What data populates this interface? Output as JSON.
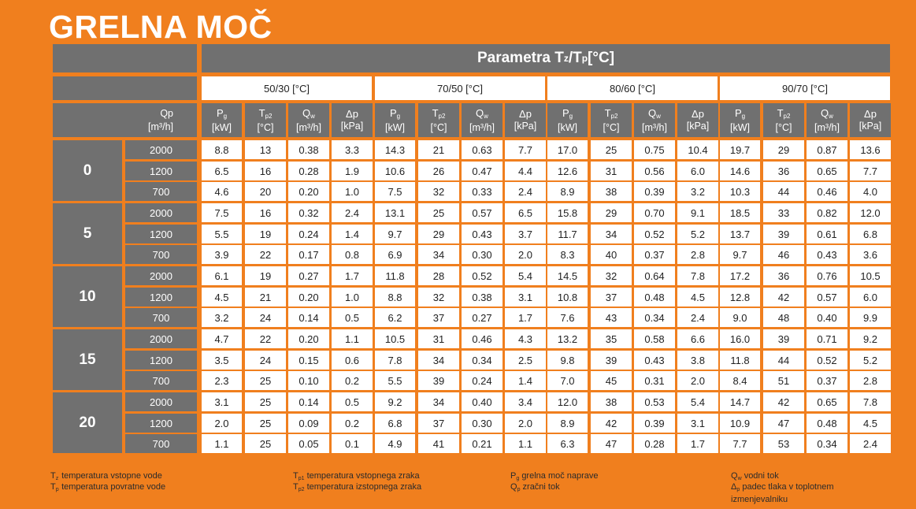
{
  "title": "GRELNA MOČ",
  "param_header": {
    "base": "Parametra T",
    "sub1": "z",
    "mid": "/T",
    "sub2": "p",
    "unit": " [°C]"
  },
  "qp_header": {
    "label": "Qp",
    "unit": "[m³/h]"
  },
  "ranges": [
    "50/30 [°C]",
    "70/50 [°C]",
    "80/60 [°C]",
    "90/70 [°C]"
  ],
  "columns": [
    {
      "sym": "P",
      "sub": "g",
      "unit": "[kW]"
    },
    {
      "sym": "T",
      "sub": "p2",
      "unit": "[°C]"
    },
    {
      "sym": "Q",
      "sub": "w",
      "unit": "[m³/h]"
    },
    {
      "sym": "Δp",
      "sub": "",
      "unit": "[kPa]"
    }
  ],
  "groups": [
    {
      "temp": "0",
      "rows": [
        {
          "flow": "2000",
          "values": [
            "8.8",
            "13",
            "0.38",
            "3.3",
            "14.3",
            "21",
            "0.63",
            "7.7",
            "17.0",
            "25",
            "0.75",
            "10.4",
            "19.7",
            "29",
            "0.87",
            "13.6"
          ]
        },
        {
          "flow": "1200",
          "values": [
            "6.5",
            "16",
            "0.28",
            "1.9",
            "10.6",
            "26",
            "0.47",
            "4.4",
            "12.6",
            "31",
            "0.56",
            "6.0",
            "14.6",
            "36",
            "0.65",
            "7.7"
          ]
        },
        {
          "flow": "700",
          "values": [
            "4.6",
            "20",
            "0.20",
            "1.0",
            "7.5",
            "32",
            "0.33",
            "2.4",
            "8.9",
            "38",
            "0.39",
            "3.2",
            "10.3",
            "44",
            "0.46",
            "4.0"
          ]
        }
      ]
    },
    {
      "temp": "5",
      "rows": [
        {
          "flow": "2000",
          "values": [
            "7.5",
            "16",
            "0.32",
            "2.4",
            "13.1",
            "25",
            "0.57",
            "6.5",
            "15.8",
            "29",
            "0.70",
            "9.1",
            "18.5",
            "33",
            "0.82",
            "12.0"
          ]
        },
        {
          "flow": "1200",
          "values": [
            "5.5",
            "19",
            "0.24",
            "1.4",
            "9.7",
            "29",
            "0.43",
            "3.7",
            "11.7",
            "34",
            "0.52",
            "5.2",
            "13.7",
            "39",
            "0.61",
            "6.8"
          ]
        },
        {
          "flow": "700",
          "values": [
            "3.9",
            "22",
            "0.17",
            "0.8",
            "6.9",
            "34",
            "0.30",
            "2.0",
            "8.3",
            "40",
            "0.37",
            "2.8",
            "9.7",
            "46",
            "0.43",
            "3.6"
          ]
        }
      ]
    },
    {
      "temp": "10",
      "rows": [
        {
          "flow": "2000",
          "values": [
            "6.1",
            "19",
            "0.27",
            "1.7",
            "11.8",
            "28",
            "0.52",
            "5.4",
            "14.5",
            "32",
            "0.64",
            "7.8",
            "17.2",
            "36",
            "0.76",
            "10.5"
          ]
        },
        {
          "flow": "1200",
          "values": [
            "4.5",
            "21",
            "0.20",
            "1.0",
            "8.8",
            "32",
            "0.38",
            "3.1",
            "10.8",
            "37",
            "0.48",
            "4.5",
            "12.8",
            "42",
            "0.57",
            "6.0"
          ]
        },
        {
          "flow": "700",
          "values": [
            "3.2",
            "24",
            "0.14",
            "0.5",
            "6.2",
            "37",
            "0.27",
            "1.7",
            "7.6",
            "43",
            "0.34",
            "2.4",
            "9.0",
            "48",
            "0.40",
            "9.9"
          ]
        }
      ]
    },
    {
      "temp": "15",
      "rows": [
        {
          "flow": "2000",
          "values": [
            "4.7",
            "22",
            "0.20",
            "1.1",
            "10.5",
            "31",
            "0.46",
            "4.3",
            "13.2",
            "35",
            "0.58",
            "6.6",
            "16.0",
            "39",
            "0.71",
            "9.2"
          ]
        },
        {
          "flow": "1200",
          "values": [
            "3.5",
            "24",
            "0.15",
            "0.6",
            "7.8",
            "34",
            "0.34",
            "2.5",
            "9.8",
            "39",
            "0.43",
            "3.8",
            "11.8",
            "44",
            "0.52",
            "5.2"
          ]
        },
        {
          "flow": "700",
          "values": [
            "2.3",
            "25",
            "0.10",
            "0.2",
            "5.5",
            "39",
            "0.24",
            "1.4",
            "7.0",
            "45",
            "0.31",
            "2.0",
            "8.4",
            "51",
            "0.37",
            "2.8"
          ]
        }
      ]
    },
    {
      "temp": "20",
      "rows": [
        {
          "flow": "2000",
          "values": [
            "3.1",
            "25",
            "0.14",
            "0.5",
            "9.2",
            "34",
            "0.40",
            "3.4",
            "12.0",
            "38",
            "0.53",
            "5.4",
            "14.7",
            "42",
            "0.65",
            "7.8"
          ]
        },
        {
          "flow": "1200",
          "values": [
            "2.0",
            "25",
            "0.09",
            "0.2",
            "6.8",
            "37",
            "0.30",
            "2.0",
            "8.9",
            "42",
            "0.39",
            "3.1",
            "10.9",
            "47",
            "0.48",
            "4.5"
          ]
        },
        {
          "flow": "700",
          "values": [
            "1.1",
            "25",
            "0.05",
            "0.1",
            "4.9",
            "41",
            "0.21",
            "1.1",
            "6.3",
            "47",
            "0.28",
            "1.7",
            "7.7",
            "53",
            "0.34",
            "2.4"
          ]
        }
      ]
    }
  ],
  "legend": [
    {
      "items": [
        {
          "sym": "T",
          "sub": "z",
          "text": "temperatura vstopne vode"
        },
        {
          "sym": "T",
          "sub": "p",
          "text": "temperatura povratne vode"
        }
      ]
    },
    {
      "items": [
        {
          "sym": "T",
          "sub": "p1",
          "text": "temperatura vstopnega zraka"
        },
        {
          "sym": "T",
          "sub": "p2",
          "text": "temperatura izstopnega zraka"
        }
      ]
    },
    {
      "items": [
        {
          "sym": "P",
          "sub": "g",
          "text": "grelna moč naprave"
        },
        {
          "sym": "Q",
          "sub": "p",
          "text": "zračni tok"
        }
      ]
    },
    {
      "items": [
        {
          "sym": "Q",
          "sub": "w",
          "text": "vodni tok"
        },
        {
          "sym": "Δ",
          "sub": "p",
          "text": "padec tlaka v toplotnem izmenjevalniku"
        }
      ]
    }
  ],
  "colors": {
    "background": "#f07f1e",
    "header": "#707070",
    "cell": "#ffffff"
  }
}
